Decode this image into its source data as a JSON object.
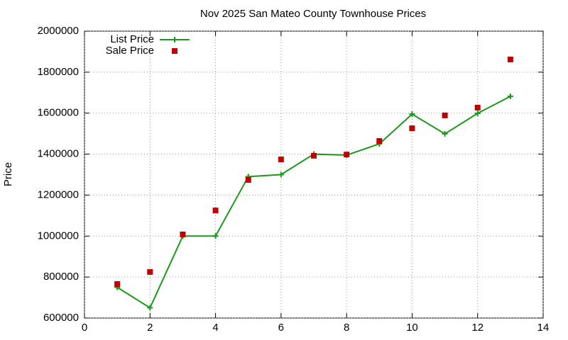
{
  "chart_data": {
    "type": "line",
    "title": "Nov 2025 San Mateo County Townhouse Prices",
    "y_label": "Price",
    "x": [
      1,
      2,
      3,
      4,
      5,
      6,
      7,
      8,
      9,
      10,
      11,
      12,
      13
    ],
    "series": [
      {
        "name": "List Price",
        "color": "#1a9a1a",
        "line": true,
        "marker": "plus",
        "values": [
          750000,
          650000,
          1000000,
          1000000,
          1290000,
          1300000,
          1400000,
          1395000,
          1450000,
          1595000,
          1499000,
          1599000,
          1682000
        ]
      },
      {
        "name": "Sale Price",
        "color": "#c00000",
        "line": false,
        "marker": "square",
        "values": [
          766000,
          825000,
          1008000,
          1125000,
          1274000,
          1374000,
          1392000,
          1398000,
          1464000,
          1526000,
          1589000,
          1627000,
          1862000
        ]
      }
    ],
    "xlim": [
      0,
      14
    ],
    "xticks": [
      0,
      2,
      4,
      6,
      8,
      10,
      12,
      14
    ],
    "ylim": [
      600000,
      2000000
    ],
    "yticks": [
      600000,
      800000,
      1000000,
      1200000,
      1400000,
      1600000,
      1800000,
      2000000
    ],
    "grid": true,
    "legend": "top-left"
  }
}
